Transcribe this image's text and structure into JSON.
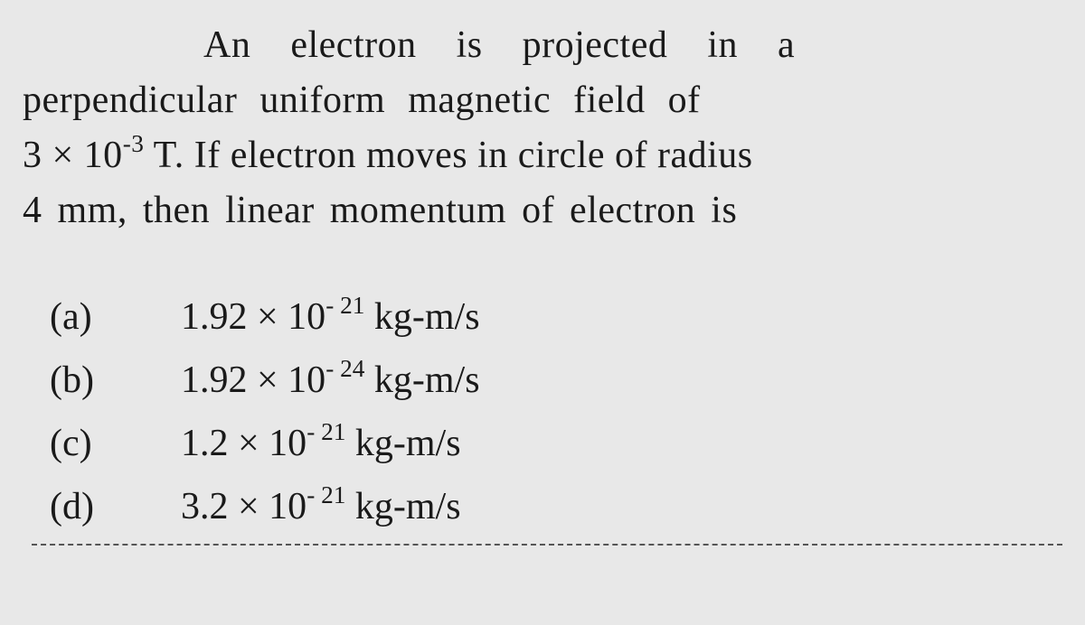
{
  "question": {
    "line_indent_after": "An",
    "part1_a": "An",
    "part1_b": "electron",
    "part1_c": "is",
    "part1_d": "projected",
    "part1_e": "in",
    "part1_f": "a",
    "part2": "perpendicular uniform magnetic field of",
    "part3_prefix": "3 × 10",
    "part3_exp": "-3",
    "part3_suffix": " T. If electron moves in circle of radius",
    "part4": "4 mm, then linear momentum of electron is"
  },
  "options": [
    {
      "label": "(a)",
      "value_prefix": "1.92 × 10",
      "value_exp": "- 21",
      "value_suffix": " kg-m/s"
    },
    {
      "label": "(b)",
      "value_prefix": "1.92 × 10",
      "value_exp": "- 24",
      "value_suffix": " kg-m/s"
    },
    {
      "label": "(c)",
      "value_prefix": "1.2 × 10",
      "value_exp": "- 21",
      "value_suffix": " kg-m/s"
    },
    {
      "label": "(d)",
      "value_prefix": "3.2 × 10",
      "value_exp": "- 21",
      "value_suffix": " kg-m/s"
    }
  ],
  "styling": {
    "background_color": "#e8e8e8",
    "text_color": "#1a1a1a",
    "font_family": "Georgia, Times New Roman, serif",
    "question_fontsize": 42,
    "option_fontsize": 42,
    "line_height": 1.45
  }
}
